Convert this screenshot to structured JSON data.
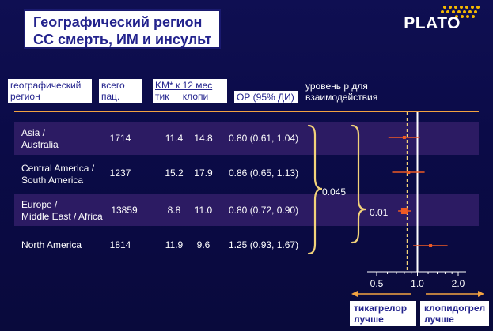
{
  "title": {
    "line1": "Географический регион",
    "line2": "СС смерть, ИМ и инсульт"
  },
  "logo": {
    "text": "PLATO",
    "accent_color": "#f5b800"
  },
  "columns": {
    "region": {
      "line1": "географический",
      "line2": "регион"
    },
    "total": {
      "line1": "всего",
      "line2": "пац."
    },
    "km": {
      "line1": "KM* к 12 мес",
      "tick": "тик",
      "clopi": "клопи"
    },
    "hr": "ОР (95% ДИ)",
    "pint": {
      "line1": "уровень р для",
      "line2": "взаимодействия"
    }
  },
  "rows": [
    {
      "region1": "Asia /",
      "region2": "Australia",
      "total": "1714",
      "tick": "11.4",
      "clopi": "14.8",
      "hr_text": "0.80 (0.61, 1.04)"
    },
    {
      "region1": "Central America /",
      "region2": "South America",
      "total": "1237",
      "tick": "15.2",
      "clopi": "17.9",
      "hr_text": "0.86 (0.65, 1.13)"
    },
    {
      "region1": "Europe /",
      "region2": "Middle East / Africa",
      "total": "13859",
      "tick": "8.8",
      "clopi": "11.0",
      "hr_text": "0.80 (0.72, 0.90)"
    },
    {
      "region1": "North America",
      "region2": "",
      "total": "1814",
      "tick": "11.9",
      "clopi": "9.6",
      "hr_text": "1.25 (0.93, 1.67)"
    }
  ],
  "p_interaction": {
    "overall": "0.045",
    "sub": "0.01"
  },
  "bottom": {
    "left": {
      "line1": "тикагрелор",
      "line2": "лучше"
    },
    "right": {
      "line1": "клопидогрел",
      "line2": "лучше"
    }
  },
  "chart_data": {
    "type": "scatter",
    "x_scale": "log",
    "xlim": [
      0.5,
      2.0
    ],
    "xticks": [
      "0.5",
      "1.0",
      "2.0"
    ],
    "reference_line": 1.0,
    "overall_estimate_line": 0.84,
    "points": [
      {
        "category": "Asia / Australia",
        "x": 0.8,
        "low": 0.61,
        "high": 1.04
      },
      {
        "category": "Central America / South America",
        "x": 0.86,
        "low": 0.65,
        "high": 1.13
      },
      {
        "category": "Europe / Middle East / Africa",
        "x": 0.8,
        "low": 0.72,
        "high": 0.9
      },
      {
        "category": "North America",
        "x": 1.25,
        "low": 0.93,
        "high": 1.67
      }
    ],
    "colors": {
      "marker": "#ee5a24",
      "accent": "#f3a341",
      "reference": "#ffffff"
    }
  }
}
